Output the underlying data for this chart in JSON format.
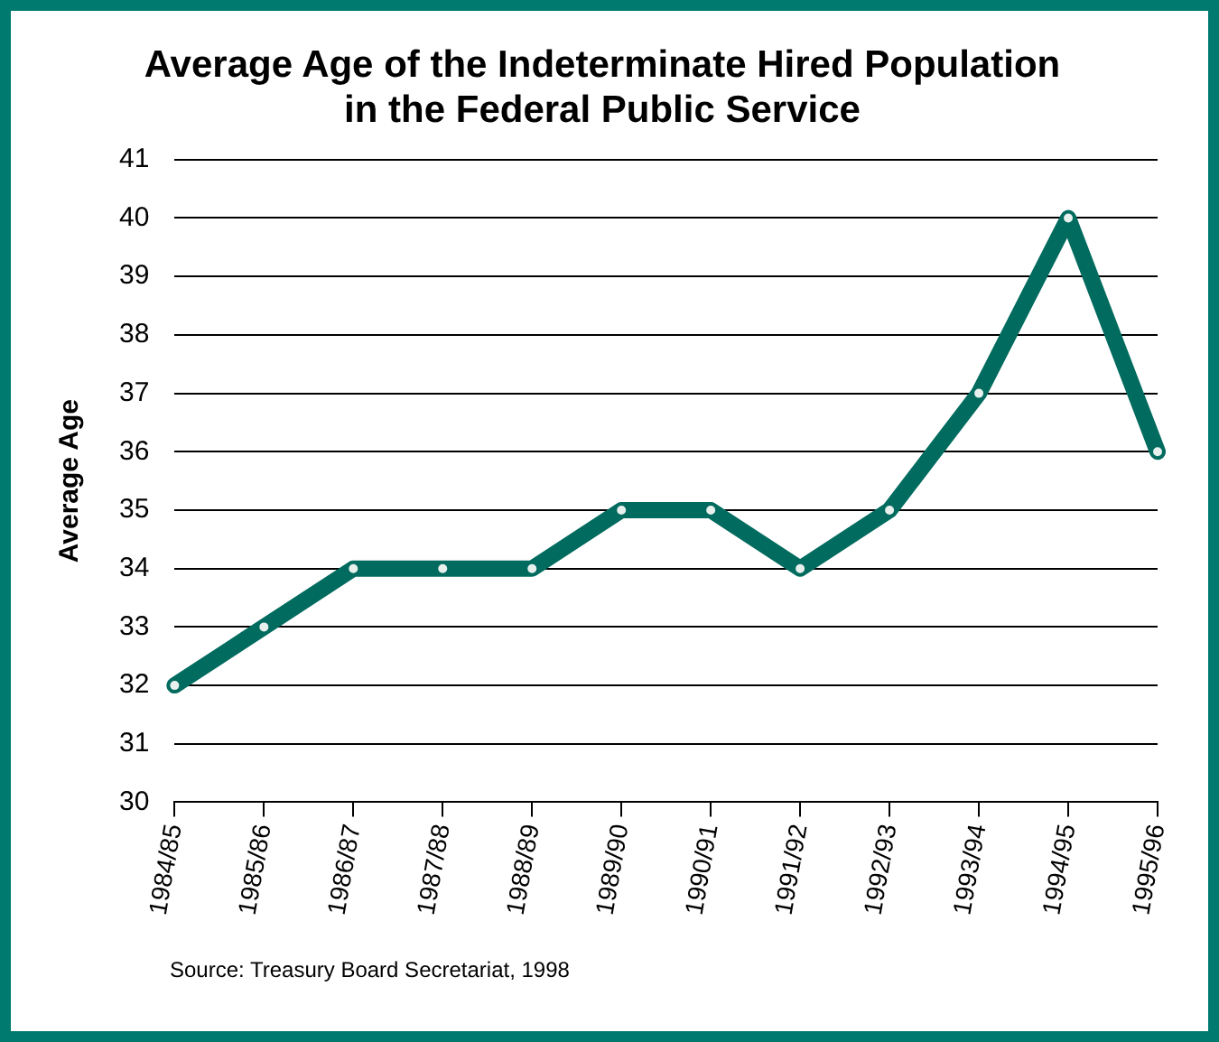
{
  "chart_data": {
    "type": "line",
    "title": "Average Age of the Indeterminate Hired Population\nin the Federal Public Service",
    "ylabel": "Average Age",
    "categories": [
      "1984/85",
      "1985/86",
      "1986/87",
      "1987/88",
      "1988/89",
      "1989/90",
      "1990/91",
      "1991/92",
      "1992/93",
      "1993/94",
      "1994/95",
      "1995/96"
    ],
    "series": [
      {
        "color": "#006b5e",
        "values": [
          32,
          33,
          34,
          34,
          34,
          35,
          35,
          34,
          35,
          37,
          40,
          36
        ]
      }
    ],
    "ylim": [
      30,
      41
    ],
    "yticks": [
      30,
      31,
      32,
      33,
      34,
      35,
      36,
      37,
      38,
      39,
      40,
      41
    ],
    "grid": "y",
    "legend": false,
    "marker": "circle",
    "line_style": "solid",
    "annotations": [
      "Source: Treasury Board Secretariat, 1998"
    ]
  }
}
